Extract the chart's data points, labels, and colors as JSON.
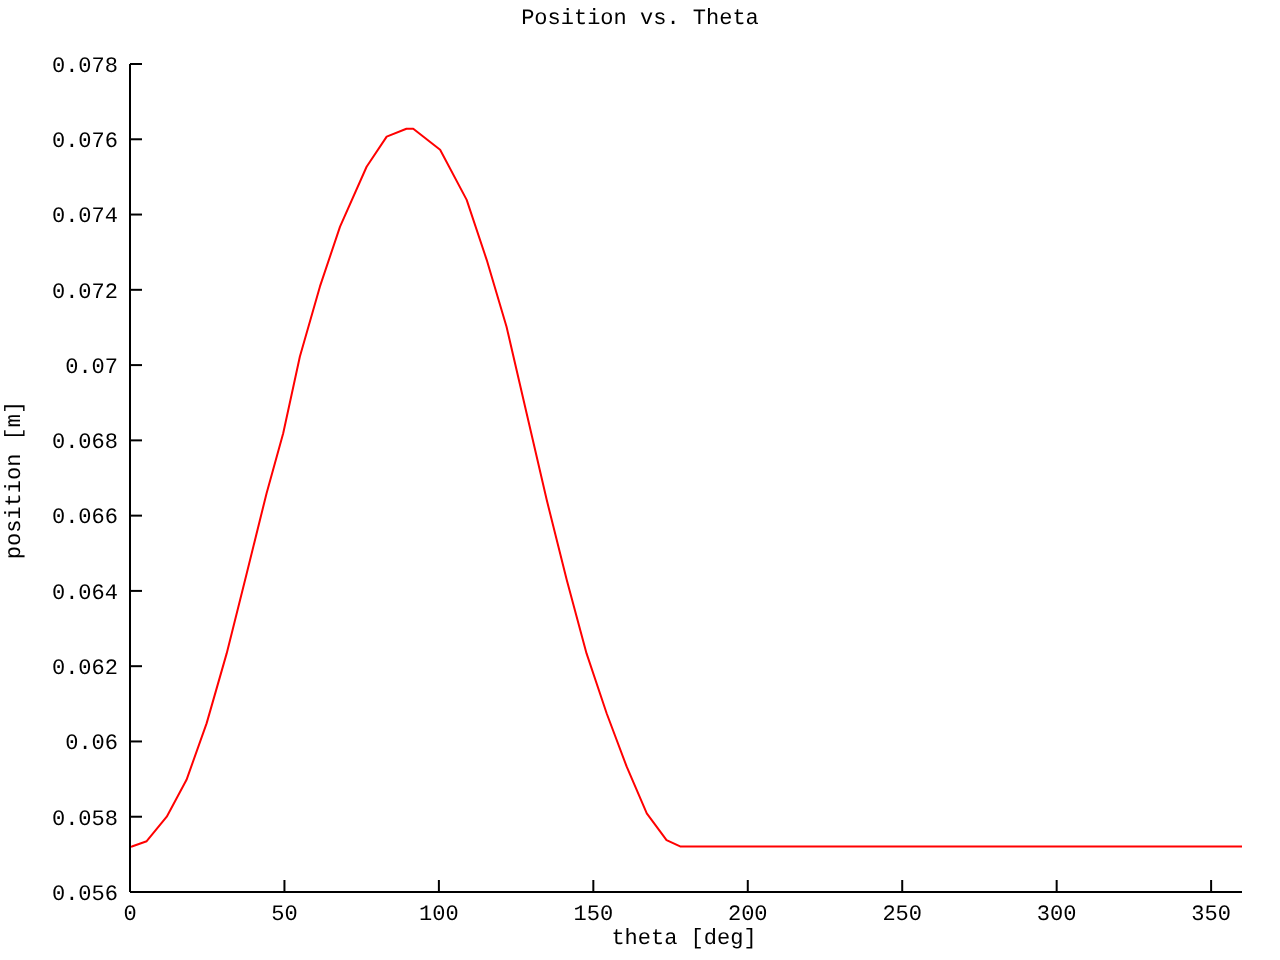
{
  "chart_data": {
    "type": "line",
    "title": "Position vs. Theta",
    "xlabel": "theta [deg]",
    "ylabel": "position [m]",
    "x": [
      0,
      0.6,
      5.4,
      11.9,
      18.3,
      24.8,
      31.3,
      37.8,
      44.2,
      49.6,
      55.0,
      61.5,
      68.0,
      76.6,
      83.1,
      89.5,
      91.7,
      100.4,
      109.0,
      115.5,
      121.9,
      128.4,
      134.9,
      141.4,
      147.8,
      154.3,
      160.8,
      167.3,
      173.7,
      178.1,
      360
    ],
    "series": [
      {
        "color": "#ff0000",
        "values": [
          0.0572,
          0.05721,
          0.05735,
          0.058,
          0.05898,
          0.06048,
          0.06234,
          0.06447,
          0.06659,
          0.06819,
          0.07023,
          0.07209,
          0.07368,
          0.07527,
          0.07607,
          0.07628,
          0.07628,
          0.07572,
          0.07439,
          0.07279,
          0.07102,
          0.06872,
          0.06642,
          0.06429,
          0.06234,
          0.06075,
          0.05933,
          0.05809,
          0.05738,
          0.05721,
          0.05721
        ]
      }
    ],
    "xlim": [
      0,
      360
    ],
    "xticks": [
      0,
      50,
      100,
      150,
      200,
      250,
      300,
      350
    ],
    "ylim": [
      0.056,
      0.078
    ],
    "yticks": [
      0.056,
      0.058,
      0.06,
      0.062,
      0.064,
      0.066,
      0.068,
      0.07,
      0.072,
      0.074,
      0.076,
      0.078
    ],
    "grid": false,
    "legend": false,
    "marker": "none",
    "line_style": "solid"
  }
}
